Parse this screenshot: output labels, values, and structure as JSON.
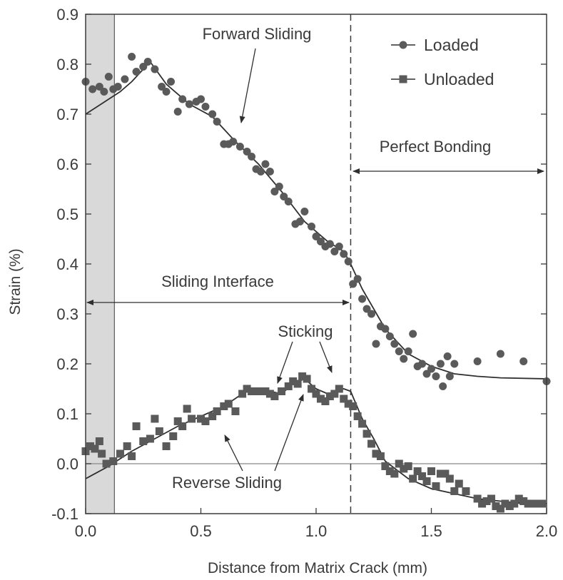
{
  "chart_data": {
    "type": "scatter",
    "title": "",
    "xlabel": "Distance from Matrix Crack (mm)",
    "ylabel": "Strain (%)",
    "xlim": [
      0.0,
      2.0
    ],
    "ylim": [
      -0.1,
      0.9
    ],
    "x_ticks": [
      "0.0",
      "0.5",
      "1.0",
      "1.5",
      "2.0"
    ],
    "y_ticks": [
      "-0.1",
      "0.0",
      "0.1",
      "0.2",
      "0.3",
      "0.4",
      "0.5",
      "0.6",
      "0.7",
      "0.8",
      "0.9"
    ],
    "grid": false,
    "legend_position": "top-right",
    "shaded_region": [
      0.0,
      0.125
    ],
    "vertical_dashed_line_x": 1.15,
    "reference_line_y": 0.0,
    "series": [
      {
        "name": "Loaded",
        "marker": "circle",
        "points": [
          [
            0.0,
            0.765
          ],
          [
            0.03,
            0.75
          ],
          [
            0.06,
            0.755
          ],
          [
            0.08,
            0.745
          ],
          [
            0.1,
            0.775
          ],
          [
            0.12,
            0.75
          ],
          [
            0.14,
            0.755
          ],
          [
            0.17,
            0.77
          ],
          [
            0.2,
            0.815
          ],
          [
            0.22,
            0.785
          ],
          [
            0.25,
            0.795
          ],
          [
            0.27,
            0.805
          ],
          [
            0.3,
            0.79
          ],
          [
            0.33,
            0.755
          ],
          [
            0.35,
            0.745
          ],
          [
            0.37,
            0.765
          ],
          [
            0.4,
            0.705
          ],
          [
            0.42,
            0.73
          ],
          [
            0.45,
            0.72
          ],
          [
            0.48,
            0.725
          ],
          [
            0.5,
            0.73
          ],
          [
            0.52,
            0.715
          ],
          [
            0.55,
            0.7
          ],
          [
            0.57,
            0.685
          ],
          [
            0.6,
            0.64
          ],
          [
            0.62,
            0.64
          ],
          [
            0.64,
            0.645
          ],
          [
            0.67,
            0.635
          ],
          [
            0.7,
            0.625
          ],
          [
            0.72,
            0.615
          ],
          [
            0.74,
            0.59
          ],
          [
            0.76,
            0.585
          ],
          [
            0.78,
            0.6
          ],
          [
            0.8,
            0.585
          ],
          [
            0.82,
            0.545
          ],
          [
            0.84,
            0.555
          ],
          [
            0.86,
            0.535
          ],
          [
            0.88,
            0.525
          ],
          [
            0.91,
            0.48
          ],
          [
            0.93,
            0.485
          ],
          [
            0.95,
            0.505
          ],
          [
            0.98,
            0.475
          ],
          [
            1.0,
            0.455
          ],
          [
            1.02,
            0.445
          ],
          [
            1.04,
            0.435
          ],
          [
            1.06,
            0.44
          ],
          [
            1.08,
            0.425
          ],
          [
            1.1,
            0.435
          ],
          [
            1.12,
            0.42
          ],
          [
            1.14,
            0.405
          ],
          [
            1.16,
            0.36
          ],
          [
            1.18,
            0.37
          ],
          [
            1.2,
            0.33
          ],
          [
            1.22,
            0.31
          ],
          [
            1.24,
            0.3
          ],
          [
            1.26,
            0.24
          ],
          [
            1.28,
            0.275
          ],
          [
            1.3,
            0.27
          ],
          [
            1.32,
            0.255
          ],
          [
            1.34,
            0.24
          ],
          [
            1.36,
            0.225
          ],
          [
            1.38,
            0.21
          ],
          [
            1.4,
            0.225
          ],
          [
            1.42,
            0.26
          ],
          [
            1.44,
            0.195
          ],
          [
            1.46,
            0.2
          ],
          [
            1.48,
            0.18
          ],
          [
            1.5,
            0.19
          ],
          [
            1.52,
            0.175
          ],
          [
            1.54,
            0.2
          ],
          [
            1.55,
            0.155
          ],
          [
            1.57,
            0.215
          ],
          [
            1.58,
            0.175
          ],
          [
            1.6,
            0.2
          ],
          [
            1.7,
            0.205
          ],
          [
            1.8,
            0.22
          ],
          [
            1.9,
            0.205
          ],
          [
            2.0,
            0.165
          ]
        ],
        "fit": [
          [
            0.0,
            0.7
          ],
          [
            0.05,
            0.715
          ],
          [
            0.1,
            0.73
          ],
          [
            0.15,
            0.745
          ],
          [
            0.2,
            0.765
          ],
          [
            0.25,
            0.79
          ],
          [
            0.28,
            0.805
          ],
          [
            0.35,
            0.76
          ],
          [
            0.45,
            0.72
          ],
          [
            0.55,
            0.695
          ],
          [
            0.65,
            0.645
          ],
          [
            0.75,
            0.6
          ],
          [
            0.85,
            0.545
          ],
          [
            0.95,
            0.485
          ],
          [
            1.05,
            0.445
          ],
          [
            1.12,
            0.425
          ],
          [
            1.15,
            0.4
          ],
          [
            1.2,
            0.35
          ],
          [
            1.3,
            0.27
          ],
          [
            1.4,
            0.22
          ],
          [
            1.5,
            0.195
          ],
          [
            1.6,
            0.18
          ],
          [
            1.7,
            0.175
          ],
          [
            1.8,
            0.172
          ],
          [
            2.0,
            0.17
          ]
        ]
      },
      {
        "name": "Unloaded",
        "marker": "square",
        "points": [
          [
            0.0,
            0.025
          ],
          [
            0.02,
            0.035
          ],
          [
            0.04,
            0.03
          ],
          [
            0.06,
            0.045
          ],
          [
            0.07,
            0.02
          ],
          [
            0.09,
            0.0
          ],
          [
            0.12,
            0.005
          ],
          [
            0.15,
            0.02
          ],
          [
            0.18,
            0.035
          ],
          [
            0.2,
            0.015
          ],
          [
            0.22,
            0.075
          ],
          [
            0.25,
            0.045
          ],
          [
            0.28,
            0.05
          ],
          [
            0.3,
            0.09
          ],
          [
            0.32,
            0.065
          ],
          [
            0.35,
            0.035
          ],
          [
            0.38,
            0.055
          ],
          [
            0.4,
            0.085
          ],
          [
            0.42,
            0.075
          ],
          [
            0.44,
            0.11
          ],
          [
            0.46,
            0.09
          ],
          [
            0.5,
            0.09
          ],
          [
            0.52,
            0.085
          ],
          [
            0.55,
            0.095
          ],
          [
            0.57,
            0.105
          ],
          [
            0.6,
            0.115
          ],
          [
            0.62,
            0.12
          ],
          [
            0.65,
            0.105
          ],
          [
            0.68,
            0.14
          ],
          [
            0.7,
            0.15
          ],
          [
            0.72,
            0.145
          ],
          [
            0.75,
            0.145
          ],
          [
            0.78,
            0.145
          ],
          [
            0.8,
            0.14
          ],
          [
            0.82,
            0.135
          ],
          [
            0.85,
            0.145
          ],
          [
            0.88,
            0.155
          ],
          [
            0.9,
            0.165
          ],
          [
            0.92,
            0.16
          ],
          [
            0.94,
            0.175
          ],
          [
            0.96,
            0.17
          ],
          [
            0.98,
            0.15
          ],
          [
            1.0,
            0.14
          ],
          [
            1.02,
            0.13
          ],
          [
            1.04,
            0.125
          ],
          [
            1.06,
            0.135
          ],
          [
            1.08,
            0.14
          ],
          [
            1.1,
            0.15
          ],
          [
            1.12,
            0.13
          ],
          [
            1.14,
            0.12
          ],
          [
            1.16,
            0.115
          ],
          [
            1.18,
            0.095
          ],
          [
            1.2,
            0.08
          ],
          [
            1.22,
            0.06
          ],
          [
            1.24,
            0.04
          ],
          [
            1.26,
            0.02
          ],
          [
            1.28,
            0.015
          ],
          [
            1.3,
            -0.005
          ],
          [
            1.32,
            -0.015
          ],
          [
            1.34,
            -0.02
          ],
          [
            1.36,
            0.0
          ],
          [
            1.38,
            -0.01
          ],
          [
            1.4,
            -0.005
          ],
          [
            1.42,
            -0.03
          ],
          [
            1.44,
            -0.015
          ],
          [
            1.46,
            -0.025
          ],
          [
            1.48,
            -0.035
          ],
          [
            1.5,
            -0.015
          ],
          [
            1.52,
            -0.045
          ],
          [
            1.54,
            -0.02
          ],
          [
            1.56,
            -0.02
          ],
          [
            1.58,
            -0.03
          ],
          [
            1.6,
            -0.055
          ],
          [
            1.62,
            -0.04
          ],
          [
            1.65,
            -0.055
          ],
          [
            1.7,
            -0.07
          ],
          [
            1.72,
            -0.08
          ],
          [
            1.74,
            -0.075
          ],
          [
            1.76,
            -0.07
          ],
          [
            1.78,
            -0.085
          ],
          [
            1.8,
            -0.09
          ],
          [
            1.82,
            -0.08
          ],
          [
            1.84,
            -0.085
          ],
          [
            1.86,
            -0.08
          ],
          [
            1.88,
            -0.07
          ],
          [
            1.9,
            -0.075
          ],
          [
            1.92,
            -0.08
          ],
          [
            1.95,
            -0.08
          ],
          [
            1.98,
            -0.08
          ]
        ],
        "fit": [
          [
            0.0,
            -0.03
          ],
          [
            0.1,
            -0.005
          ],
          [
            0.2,
            0.025
          ],
          [
            0.3,
            0.05
          ],
          [
            0.4,
            0.075
          ],
          [
            0.5,
            0.095
          ],
          [
            0.6,
            0.115
          ],
          [
            0.68,
            0.14
          ],
          [
            0.72,
            0.15
          ],
          [
            0.8,
            0.145
          ],
          [
            0.85,
            0.14
          ],
          [
            0.9,
            0.16
          ],
          [
            0.95,
            0.17
          ],
          [
            1.0,
            0.15
          ],
          [
            1.05,
            0.14
          ],
          [
            1.12,
            0.15
          ],
          [
            1.15,
            0.145
          ],
          [
            1.2,
            0.09
          ],
          [
            1.25,
            0.05
          ],
          [
            1.3,
            0.005
          ],
          [
            1.4,
            -0.03
          ],
          [
            1.5,
            -0.05
          ],
          [
            1.6,
            -0.06
          ],
          [
            1.7,
            -0.07
          ],
          [
            1.8,
            -0.075
          ],
          [
            1.9,
            -0.08
          ],
          [
            2.0,
            -0.08
          ]
        ]
      }
    ],
    "annotations": [
      {
        "text": "Forward Sliding"
      },
      {
        "text": "Perfect Bonding"
      },
      {
        "text": "Sliding Interface"
      },
      {
        "text": "Sticking"
      },
      {
        "text": "Reverse Sliding"
      }
    ],
    "colors": {
      "series": "#5a5a5a",
      "line": "#2f2f2f",
      "axis": "#3a3a3a",
      "shade": "#d9d9d9"
    }
  }
}
